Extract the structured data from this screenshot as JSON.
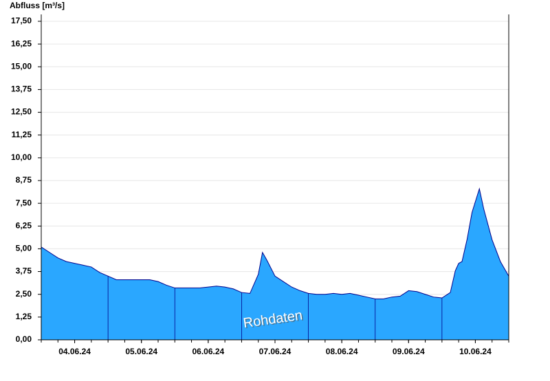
{
  "chart_data": {
    "type": "area",
    "y_label": "Abfluss [m³/s]",
    "annotation": "Rohdaten",
    "xlim": [
      0,
      7
    ],
    "xticks": [
      {
        "value": 0.5,
        "label": "04.06.24"
      },
      {
        "value": 1.5,
        "label": "05.06.24"
      },
      {
        "value": 2.5,
        "label": "06.06.24"
      },
      {
        "value": 3.5,
        "label": "07.06.24"
      },
      {
        "value": 4.5,
        "label": "08.06.24"
      },
      {
        "value": 5.5,
        "label": "09.06.24"
      },
      {
        "value": 6.5,
        "label": "10.06.24"
      }
    ],
    "ylim": [
      0,
      17.5
    ],
    "yticks": [
      {
        "value": 0,
        "label": "0,00"
      },
      {
        "value": 1.25,
        "label": "1,25"
      },
      {
        "value": 2.5,
        "label": "2,50"
      },
      {
        "value": 3.75,
        "label": "3,75"
      },
      {
        "value": 5,
        "label": "5,00"
      },
      {
        "value": 6.25,
        "label": "6,25"
      },
      {
        "value": 7.5,
        "label": "7,50"
      },
      {
        "value": 8.75,
        "label": "8,75"
      },
      {
        "value": 10,
        "label": "10,00"
      },
      {
        "value": 11.25,
        "label": "11,25"
      },
      {
        "value": 12.5,
        "label": "12,50"
      },
      {
        "value": 13.75,
        "label": "13,75"
      },
      {
        "value": 15,
        "label": "15,00"
      },
      {
        "value": 16.25,
        "label": "16,25"
      },
      {
        "value": 17.5,
        "label": "17,50"
      }
    ],
    "grid": true,
    "series": [
      {
        "color": "#2aa7ff",
        "line_color": "#00008b",
        "x": [
          0,
          0.125,
          0.25,
          0.375,
          0.5,
          0.625,
          0.75,
          0.875,
          1.0,
          1.125,
          1.25,
          1.375,
          1.5,
          1.625,
          1.75,
          1.875,
          2.0,
          2.125,
          2.25,
          2.375,
          2.5,
          2.625,
          2.75,
          2.875,
          3.0,
          3.125,
          3.25,
          3.3125,
          3.375,
          3.5,
          3.625,
          3.75,
          3.875,
          4.0,
          4.125,
          4.25,
          4.375,
          4.5,
          4.625,
          4.75,
          4.875,
          5.0,
          5.125,
          5.25,
          5.375,
          5.5,
          5.625,
          5.75,
          5.875,
          6.0,
          6.125,
          6.2,
          6.25,
          6.3,
          6.375,
          6.45,
          6.56,
          6.625,
          6.75,
          6.875,
          7.0
        ],
        "values": [
          5.1,
          4.8,
          4.5,
          4.3,
          4.2,
          4.1,
          4.0,
          3.7,
          3.5,
          3.3,
          3.3,
          3.3,
          3.3,
          3.3,
          3.2,
          3.0,
          2.85,
          2.85,
          2.85,
          2.85,
          2.9,
          2.95,
          2.9,
          2.8,
          2.6,
          2.55,
          3.6,
          4.8,
          4.4,
          3.5,
          3.2,
          2.9,
          2.7,
          2.55,
          2.5,
          2.5,
          2.55,
          2.5,
          2.55,
          2.45,
          2.35,
          2.25,
          2.25,
          2.35,
          2.4,
          2.7,
          2.65,
          2.5,
          2.35,
          2.3,
          2.6,
          3.8,
          4.2,
          4.3,
          5.5,
          7.0,
          8.3,
          7.2,
          5.5,
          4.3,
          3.5
        ]
      }
    ]
  }
}
